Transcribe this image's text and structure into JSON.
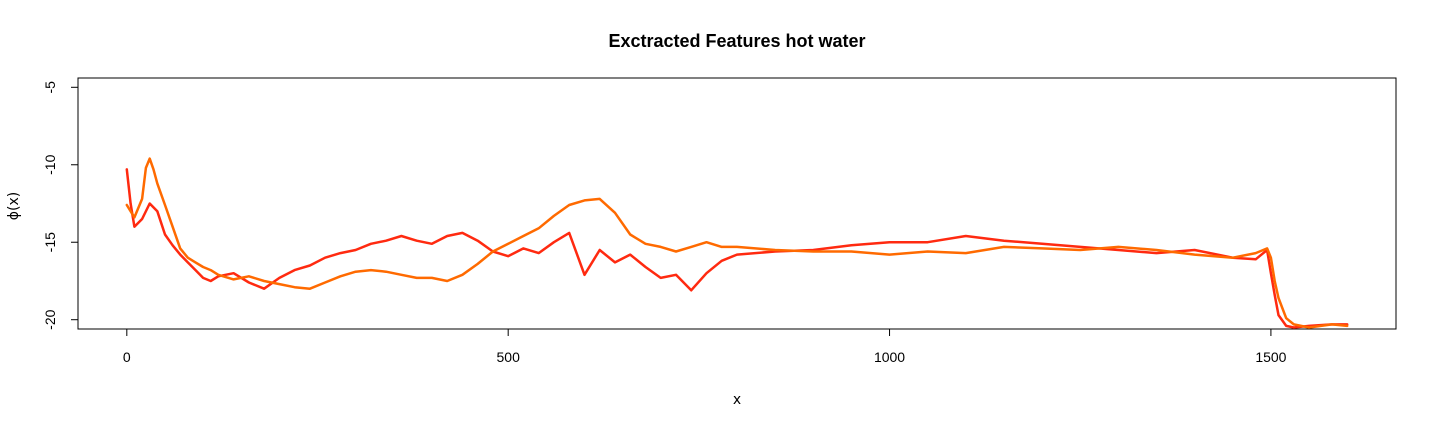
{
  "chart_data": {
    "type": "line",
    "title": "Exctracted Features hot water",
    "xlabel": "x",
    "ylabel": "ϕ(x)",
    "xlim": [
      -64,
      1664
    ],
    "ylim": [
      -20.6,
      -4.4
    ],
    "xticks": [
      0,
      500,
      1000,
      1500
    ],
    "xtick_labels": [
      "0",
      "500",
      "1000",
      "1500"
    ],
    "yticks": [
      -20,
      -15,
      -10,
      -5
    ],
    "ytick_labels": [
      "-20",
      "-15",
      "-10",
      "-5"
    ],
    "grid": false,
    "legend": "none",
    "series": [
      {
        "color": "#FF2A10",
        "x": [
          0,
          5,
          10,
          20,
          30,
          40,
          50,
          60,
          70,
          80,
          90,
          100,
          110,
          120,
          140,
          160,
          180,
          200,
          220,
          240,
          260,
          280,
          300,
          320,
          340,
          360,
          380,
          400,
          420,
          440,
          460,
          480,
          500,
          520,
          540,
          560,
          580,
          600,
          620,
          640,
          660,
          680,
          700,
          720,
          740,
          760,
          780,
          800,
          850,
          900,
          950,
          1000,
          1050,
          1100,
          1150,
          1200,
          1250,
          1300,
          1350,
          1400,
          1450,
          1480,
          1495,
          1500,
          1505,
          1510,
          1520,
          1530,
          1550,
          1580,
          1600
        ],
        "y": [
          -10.3,
          -12.5,
          -14.0,
          -13.5,
          -12.5,
          -13.0,
          -14.5,
          -15.2,
          -15.8,
          -16.3,
          -16.8,
          -17.3,
          -17.5,
          -17.2,
          -17.0,
          -17.6,
          -18.0,
          -17.3,
          -16.8,
          -16.5,
          -16.0,
          -15.7,
          -15.5,
          -15.1,
          -14.9,
          -14.6,
          -14.9,
          -15.1,
          -14.6,
          -14.4,
          -14.9,
          -15.6,
          -15.9,
          -15.4,
          -15.7,
          -15.0,
          -14.4,
          -17.1,
          -15.5,
          -16.3,
          -15.8,
          -16.6,
          -17.3,
          -17.1,
          -18.1,
          -17.0,
          -16.2,
          -15.8,
          -15.6,
          -15.5,
          -15.2,
          -15.0,
          -15.0,
          -14.6,
          -14.9,
          -15.1,
          -15.3,
          -15.5,
          -15.7,
          -15.5,
          -16.0,
          -16.1,
          -15.5,
          -17.0,
          -18.4,
          -19.7,
          -20.4,
          -20.5,
          -20.4,
          -20.3,
          -20.3
        ]
      },
      {
        "color": "#FF6A00",
        "x": [
          0,
          5,
          10,
          20,
          25,
          30,
          35,
          40,
          50,
          60,
          70,
          80,
          90,
          100,
          110,
          120,
          140,
          160,
          180,
          200,
          220,
          240,
          260,
          280,
          300,
          320,
          340,
          360,
          380,
          400,
          420,
          440,
          460,
          480,
          500,
          520,
          540,
          560,
          580,
          600,
          620,
          640,
          660,
          680,
          700,
          720,
          740,
          760,
          780,
          800,
          850,
          900,
          950,
          1000,
          1050,
          1100,
          1150,
          1200,
          1250,
          1300,
          1350,
          1400,
          1450,
          1480,
          1495,
          1500,
          1505,
          1510,
          1520,
          1530,
          1550,
          1580,
          1600
        ],
        "y": [
          -12.6,
          -13.0,
          -13.4,
          -12.2,
          -10.2,
          -9.6,
          -10.3,
          -11.2,
          -12.6,
          -14.0,
          -15.4,
          -16.0,
          -16.3,
          -16.6,
          -16.8,
          -17.1,
          -17.4,
          -17.2,
          -17.5,
          -17.7,
          -17.9,
          -18.0,
          -17.6,
          -17.2,
          -16.9,
          -16.8,
          -16.9,
          -17.1,
          -17.3,
          -17.3,
          -17.5,
          -17.1,
          -16.4,
          -15.6,
          -15.1,
          -14.6,
          -14.1,
          -13.3,
          -12.6,
          -12.3,
          -12.2,
          -13.1,
          -14.5,
          -15.1,
          -15.3,
          -15.6,
          -15.3,
          -15.0,
          -15.3,
          -15.3,
          -15.5,
          -15.6,
          -15.6,
          -15.8,
          -15.6,
          -15.7,
          -15.3,
          -15.4,
          -15.5,
          -15.3,
          -15.5,
          -15.8,
          -16.0,
          -15.7,
          -15.4,
          -16.0,
          -17.5,
          -18.6,
          -19.9,
          -20.3,
          -20.5,
          -20.3,
          -20.4
        ]
      }
    ]
  }
}
